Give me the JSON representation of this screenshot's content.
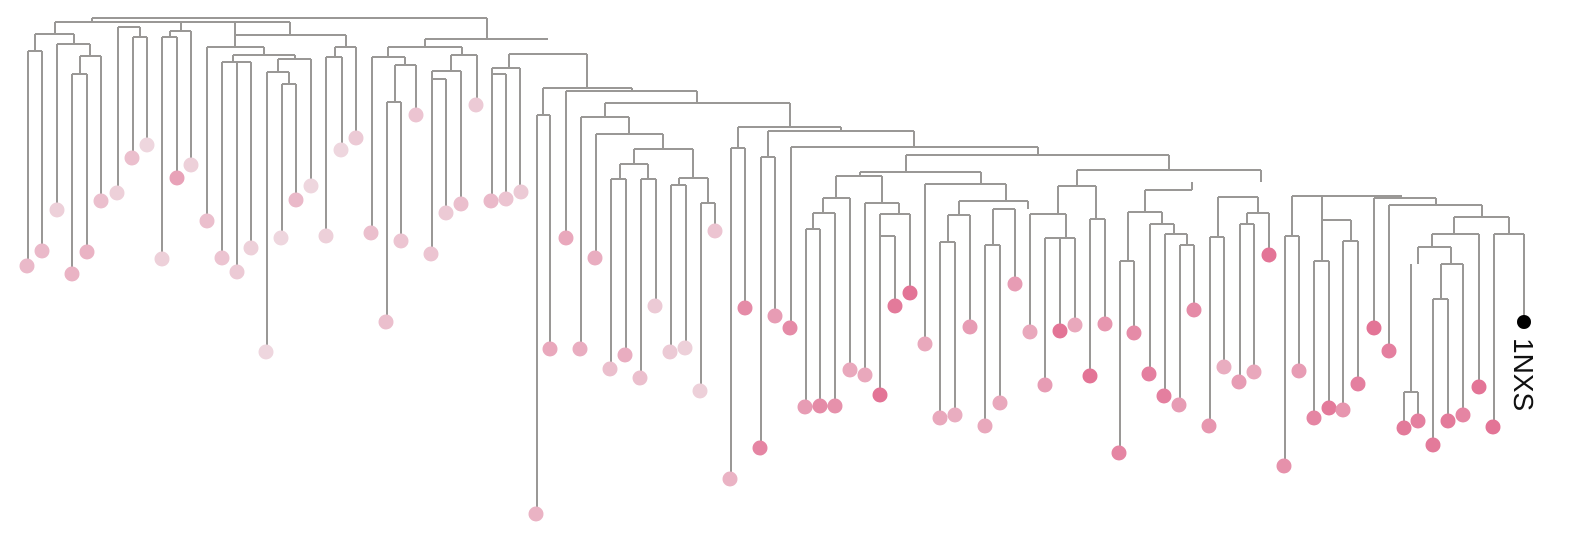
{
  "diagram": {
    "type": "phylogenetic-tree",
    "highlighted_leaf_label": "1NXS",
    "colors": {
      "edge": "#9a9896",
      "highlight_dot": "#000000",
      "leaf_light": "#efe1e6",
      "leaf_dark": "#e26e92"
    }
  }
}
